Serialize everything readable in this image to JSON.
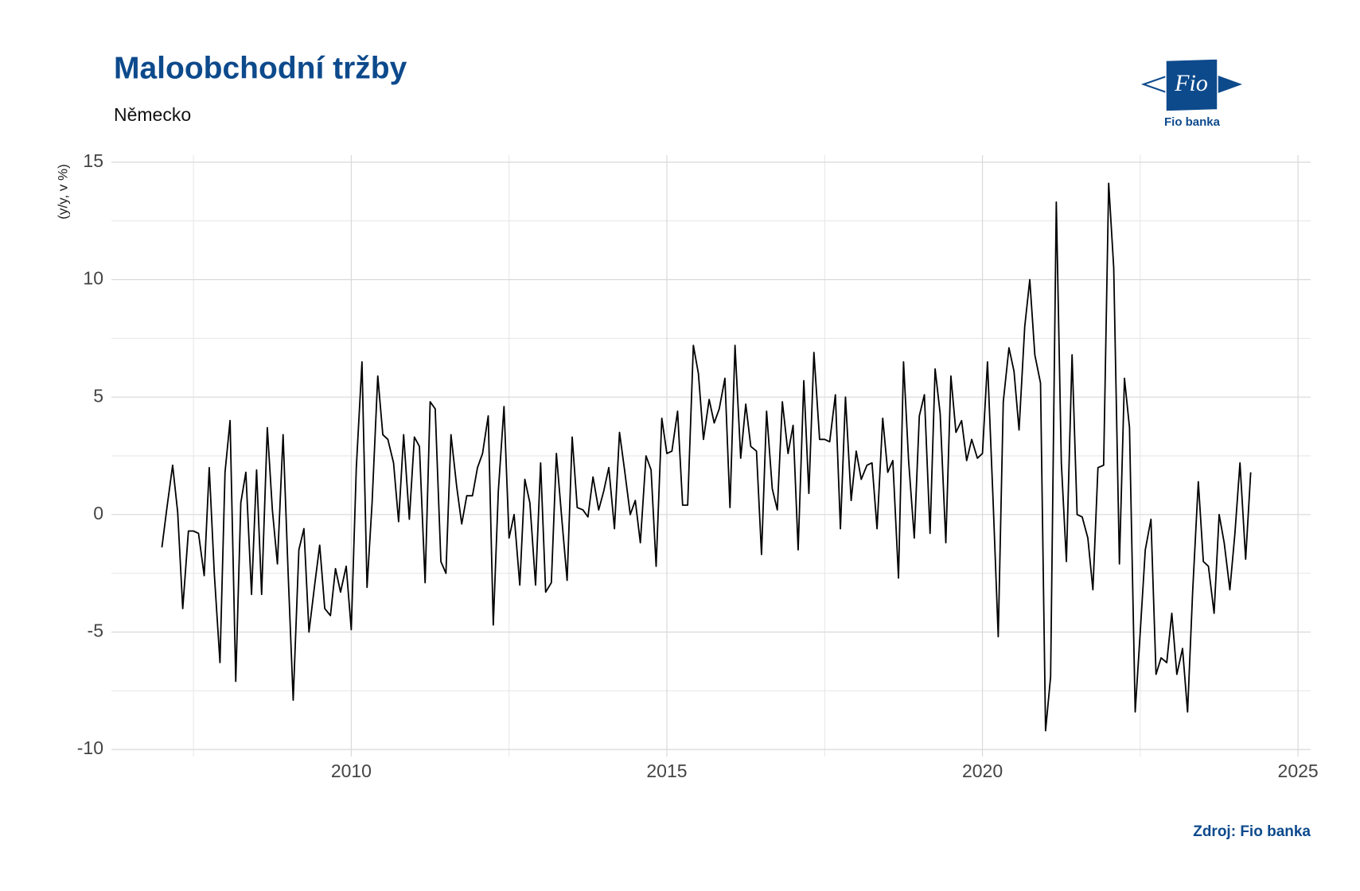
{
  "chart_data": {
    "type": "line",
    "title": "Maloobchodní tržby",
    "subtitle": "Německo",
    "y_label": "(y/y, v %)",
    "source": "Zdroj: Fio banka",
    "grid": true,
    "xlim": [
      2006.2,
      2025.2
    ],
    "xticks": [
      2010,
      2015,
      2020,
      2025
    ],
    "ylim": [
      -10.3,
      15.3
    ],
    "yticks": [
      -10,
      -5,
      0,
      5,
      10,
      15
    ],
    "x": [
      2007.0,
      2007.08,
      2007.17,
      2007.25,
      2007.33,
      2007.42,
      2007.5,
      2007.58,
      2007.67,
      2007.75,
      2007.83,
      2007.92,
      2008.0,
      2008.08,
      2008.17,
      2008.25,
      2008.33,
      2008.42,
      2008.5,
      2008.58,
      2008.67,
      2008.75,
      2008.83,
      2008.92,
      2009.0,
      2009.08,
      2009.17,
      2009.25,
      2009.33,
      2009.42,
      2009.5,
      2009.58,
      2009.67,
      2009.75,
      2009.83,
      2009.92,
      2010.0,
      2010.08,
      2010.17,
      2010.25,
      2010.33,
      2010.42,
      2010.5,
      2010.58,
      2010.67,
      2010.75,
      2010.83,
      2010.92,
      2011.0,
      2011.08,
      2011.17,
      2011.25,
      2011.33,
      2011.42,
      2011.5,
      2011.58,
      2011.67,
      2011.75,
      2011.83,
      2011.92,
      2012.0,
      2012.08,
      2012.17,
      2012.25,
      2012.33,
      2012.42,
      2012.5,
      2012.58,
      2012.67,
      2012.75,
      2012.83,
      2012.92,
      2013.0,
      2013.08,
      2013.17,
      2013.25,
      2013.33,
      2013.42,
      2013.5,
      2013.58,
      2013.67,
      2013.75,
      2013.83,
      2013.92,
      2014.0,
      2014.08,
      2014.17,
      2014.25,
      2014.33,
      2014.42,
      2014.5,
      2014.58,
      2014.67,
      2014.75,
      2014.83,
      2014.92,
      2015.0,
      2015.08,
      2015.17,
      2015.25,
      2015.33,
      2015.42,
      2015.5,
      2015.58,
      2015.67,
      2015.75,
      2015.83,
      2015.92,
      2016.0,
      2016.08,
      2016.17,
      2016.25,
      2016.33,
      2016.42,
      2016.5,
      2016.58,
      2016.67,
      2016.75,
      2016.83,
      2016.92,
      2017.0,
      2017.08,
      2017.17,
      2017.25,
      2017.33,
      2017.42,
      2017.5,
      2017.58,
      2017.67,
      2017.75,
      2017.83,
      2017.92,
      2018.0,
      2018.08,
      2018.17,
      2018.25,
      2018.33,
      2018.42,
      2018.5,
      2018.58,
      2018.67,
      2018.75,
      2018.83,
      2018.92,
      2019.0,
      2019.08,
      2019.17,
      2019.25,
      2019.33,
      2019.42,
      2019.5,
      2019.58,
      2019.67,
      2019.75,
      2019.83,
      2019.92,
      2020.0,
      2020.08,
      2020.17,
      2020.25,
      2020.33,
      2020.42,
      2020.5,
      2020.58,
      2020.67,
      2020.75,
      2020.83,
      2020.92,
      2021.0,
      2021.08,
      2021.17,
      2021.25,
      2021.33,
      2021.42,
      2021.5,
      2021.58,
      2021.67,
      2021.75,
      2021.83,
      2021.92,
      2022.0,
      2022.08,
      2022.17,
      2022.25,
      2022.33,
      2022.42,
      2022.5,
      2022.58,
      2022.67,
      2022.75,
      2022.83,
      2022.92,
      2023.0,
      2023.08,
      2023.17,
      2023.25,
      2023.33,
      2023.42,
      2023.5,
      2023.58,
      2023.67,
      2023.75,
      2023.83,
      2023.92,
      2024.0,
      2024.08,
      2024.17,
      2024.25
    ],
    "series": [
      {
        "color": "#000000",
        "values": [
          -1.4,
          0.3,
          2.1,
          0.1,
          -4.0,
          -0.7,
          -0.7,
          -0.8,
          -2.6,
          2.0,
          -2.5,
          -6.3,
          1.8,
          4.0,
          -7.1,
          0.5,
          1.8,
          -3.4,
          1.9,
          -3.4,
          3.7,
          0.2,
          -2.1,
          3.4,
          -2.5,
          -7.9,
          -1.5,
          -0.6,
          -5.0,
          -3.0,
          -1.3,
          -4.0,
          -4.3,
          -2.3,
          -3.3,
          -2.2,
          -4.9,
          2.0,
          6.5,
          -3.1,
          0.5,
          5.9,
          3.4,
          3.2,
          2.2,
          -0.3,
          3.4,
          -0.2,
          3.3,
          2.9,
          -2.9,
          4.8,
          4.5,
          -2.0,
          -2.5,
          3.4,
          1.2,
          -0.4,
          0.8,
          0.8,
          2.0,
          2.6,
          4.2,
          -4.7,
          1.0,
          4.6,
          -1.0,
          0.0,
          -3.0,
          1.5,
          0.5,
          -3.0,
          2.2,
          -3.3,
          -2.9,
          2.6,
          0.0,
          -2.8,
          3.3,
          0.3,
          0.2,
          -0.1,
          1.6,
          0.2,
          1.0,
          2.0,
          -0.6,
          3.5,
          1.9,
          0.0,
          0.6,
          -1.2,
          2.5,
          1.9,
          -2.2,
          4.1,
          2.6,
          2.7,
          4.4,
          0.4,
          0.4,
          7.2,
          6.0,
          3.2,
          4.9,
          3.9,
          4.5,
          5.8,
          0.3,
          7.2,
          2.4,
          4.7,
          2.9,
          2.7,
          -1.7,
          4.4,
          1.1,
          0.2,
          4.8,
          2.6,
          3.8,
          -1.5,
          5.7,
          0.9,
          6.9,
          3.2,
          3.2,
          3.1,
          5.1,
          -0.6,
          5.0,
          0.6,
          2.7,
          1.5,
          2.1,
          2.2,
          -0.6,
          4.1,
          1.8,
          2.3,
          -2.7,
          6.5,
          2.3,
          -1.0,
          4.2,
          5.1,
          -0.8,
          6.2,
          4.3,
          -1.2,
          5.9,
          3.5,
          4.0,
          2.3,
          3.2,
          2.4,
          2.6,
          6.5,
          0.5,
          -5.2,
          4.8,
          7.1,
          6.1,
          3.6,
          8.0,
          10.0,
          6.8,
          5.6,
          -9.2,
          -6.9,
          13.3,
          2.2,
          -2.0,
          6.8,
          0.0,
          -0.1,
          -1.0,
          -3.2,
          2.0,
          2.1,
          14.1,
          10.5,
          -2.1,
          5.8,
          3.7,
          -8.4,
          -5.0,
          -1.5,
          -0.2,
          -6.8,
          -6.1,
          -6.3,
          -4.2,
          -6.8,
          -5.7,
          -8.4,
          -3.3,
          1.4,
          -2.0,
          -2.2,
          -4.2,
          0.0,
          -1.2,
          -3.2,
          -0.8,
          2.2,
          -1.9,
          1.8
        ]
      }
    ]
  },
  "logo": {
    "mark": "Fio",
    "name": "Fio banka"
  }
}
